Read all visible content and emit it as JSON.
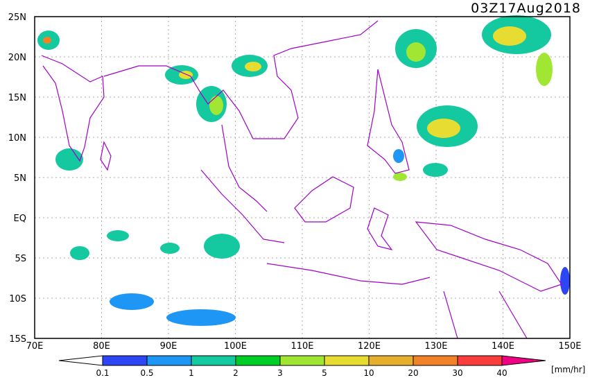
{
  "map": {
    "title": "03Z17Aug2018",
    "lon_labels": [
      "70E",
      "80E",
      "90E",
      "100E",
      "110E",
      "120E",
      "130E",
      "140E",
      "150E"
    ],
    "lat_labels": [
      "25N",
      "20N",
      "15N",
      "10N",
      "5N",
      "EQ",
      "5S",
      "10S",
      "15S"
    ],
    "colorbar": {
      "labels": [
        "0.1",
        "0.5",
        "1",
        "2",
        "3",
        "5",
        "10",
        "20",
        "30",
        "40"
      ],
      "colors": [
        "#ffffff",
        "#2d46f5",
        "#1e96f5",
        "#14c8a0",
        "#00cd28",
        "#a0e632",
        "#e6dc32",
        "#e6af2d",
        "#f08228",
        "#fa3c3c",
        "#f00082"
      ],
      "unit": "[mm/hr]"
    }
  }
}
